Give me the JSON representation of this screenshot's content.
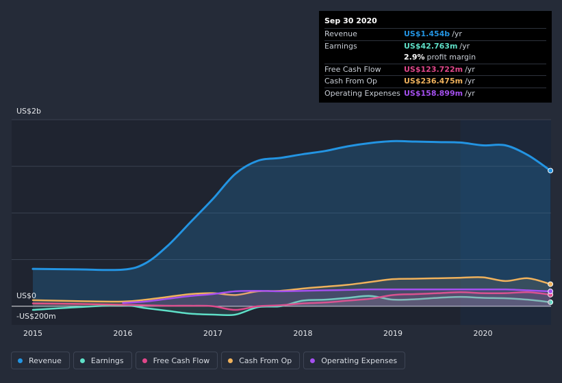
{
  "tooltip": {
    "date": "Sep 30 2020",
    "rows": [
      {
        "label": "Revenue",
        "value": "US$1.454b",
        "unit": "/yr",
        "color": "#2394e2"
      },
      {
        "label": "Earnings",
        "value": "US$42.763m",
        "unit": "/yr",
        "color": "#5fe0c8"
      },
      {
        "label": "",
        "value": "2.9%",
        "unit": "profit margin",
        "color": "#ffffff"
      },
      {
        "label": "Free Cash Flow",
        "value": "US$123.722m",
        "unit": "/yr",
        "color": "#e0478a"
      },
      {
        "label": "Cash From Op",
        "value": "US$236.475m",
        "unit": "/yr",
        "color": "#f0b25c"
      },
      {
        "label": "Operating Expenses",
        "value": "US$158.899m",
        "unit": "/yr",
        "color": "#a550f0"
      }
    ]
  },
  "axis": {
    "y_top": "US$2b",
    "y_zero": "US$0",
    "y_bottom": "-US$200m"
  },
  "legend": [
    {
      "label": "Revenue",
      "color": "#2394e2"
    },
    {
      "label": "Earnings",
      "color": "#5fe0c8"
    },
    {
      "label": "Free Cash Flow",
      "color": "#e0478a"
    },
    {
      "label": "Cash From Op",
      "color": "#f0b25c"
    },
    {
      "label": "Operating Expenses",
      "color": "#a550f0"
    }
  ],
  "chart_data": {
    "type": "area",
    "x_ticks": [
      "2015",
      "2016",
      "2017",
      "2018",
      "2019",
      "2020"
    ],
    "ylim": [
      -200,
      2000
    ],
    "y_unit": "US$m",
    "highlight_start": 2019.75,
    "series": [
      {
        "name": "Revenue",
        "color": "#2394e2",
        "points": [
          [
            2015.0,
            400
          ],
          [
            2015.5,
            395
          ],
          [
            2016.0,
            392
          ],
          [
            2016.25,
            460
          ],
          [
            2016.5,
            650
          ],
          [
            2016.75,
            900
          ],
          [
            2017.0,
            1150
          ],
          [
            2017.25,
            1420
          ],
          [
            2017.5,
            1560
          ],
          [
            2017.75,
            1590
          ],
          [
            2018.0,
            1630
          ],
          [
            2018.25,
            1665
          ],
          [
            2018.5,
            1715
          ],
          [
            2018.75,
            1750
          ],
          [
            2019.0,
            1770
          ],
          [
            2019.25,
            1765
          ],
          [
            2019.5,
            1760
          ],
          [
            2019.75,
            1755
          ],
          [
            2020.0,
            1725
          ],
          [
            2020.25,
            1725
          ],
          [
            2020.5,
            1620
          ],
          [
            2020.75,
            1454
          ]
        ]
      },
      {
        "name": "Earnings",
        "color": "#5fe0c8",
        "points": [
          [
            2015.0,
            -40
          ],
          [
            2015.5,
            -10
          ],
          [
            2016.0,
            10
          ],
          [
            2016.25,
            -20
          ],
          [
            2016.5,
            -50
          ],
          [
            2016.75,
            -80
          ],
          [
            2017.0,
            -90
          ],
          [
            2017.25,
            -90
          ],
          [
            2017.5,
            -10
          ],
          [
            2017.75,
            0
          ],
          [
            2018.0,
            60
          ],
          [
            2018.25,
            70
          ],
          [
            2018.5,
            90
          ],
          [
            2018.75,
            110
          ],
          [
            2019.0,
            70
          ],
          [
            2019.25,
            75
          ],
          [
            2019.5,
            90
          ],
          [
            2019.75,
            100
          ],
          [
            2020.0,
            90
          ],
          [
            2020.25,
            85
          ],
          [
            2020.5,
            70
          ],
          [
            2020.75,
            42.763
          ]
        ]
      },
      {
        "name": "Free Cash Flow",
        "color": "#e0478a",
        "points": [
          [
            2015.0,
            30
          ],
          [
            2015.5,
            25
          ],
          [
            2016.0,
            15
          ],
          [
            2016.25,
            10
          ],
          [
            2016.5,
            5
          ],
          [
            2016.75,
            5
          ],
          [
            2017.0,
            0
          ],
          [
            2017.25,
            -40
          ],
          [
            2017.5,
            0
          ],
          [
            2017.75,
            10
          ],
          [
            2018.0,
            30
          ],
          [
            2018.25,
            40
          ],
          [
            2018.5,
            60
          ],
          [
            2018.75,
            80
          ],
          [
            2019.0,
            120
          ],
          [
            2019.25,
            130
          ],
          [
            2019.5,
            140
          ],
          [
            2019.75,
            150
          ],
          [
            2020.0,
            140
          ],
          [
            2020.25,
            140
          ],
          [
            2020.5,
            150
          ],
          [
            2020.75,
            123.722
          ]
        ]
      },
      {
        "name": "Cash From Op",
        "color": "#f0b25c",
        "points": [
          [
            2015.0,
            65
          ],
          [
            2015.5,
            55
          ],
          [
            2016.0,
            50
          ],
          [
            2016.25,
            70
          ],
          [
            2016.5,
            100
          ],
          [
            2016.75,
            130
          ],
          [
            2017.0,
            140
          ],
          [
            2017.25,
            120
          ],
          [
            2017.5,
            160
          ],
          [
            2017.75,
            165
          ],
          [
            2018.0,
            190
          ],
          [
            2018.25,
            210
          ],
          [
            2018.5,
            230
          ],
          [
            2018.75,
            260
          ],
          [
            2019.0,
            290
          ],
          [
            2019.25,
            295
          ],
          [
            2019.5,
            300
          ],
          [
            2019.75,
            305
          ],
          [
            2020.0,
            310
          ],
          [
            2020.25,
            270
          ],
          [
            2020.5,
            300
          ],
          [
            2020.75,
            236.475
          ]
        ]
      },
      {
        "name": "Operating Expenses",
        "color": "#a550f0",
        "points": [
          [
            2016.0,
            35
          ],
          [
            2016.25,
            50
          ],
          [
            2016.5,
            80
          ],
          [
            2016.75,
            110
          ],
          [
            2017.0,
            130
          ],
          [
            2017.25,
            160
          ],
          [
            2017.5,
            165
          ],
          [
            2017.75,
            160
          ],
          [
            2018.0,
            165
          ],
          [
            2018.25,
            170
          ],
          [
            2018.5,
            175
          ],
          [
            2018.75,
            180
          ],
          [
            2019.0,
            180
          ],
          [
            2019.25,
            180
          ],
          [
            2019.5,
            180
          ],
          [
            2019.75,
            180
          ],
          [
            2020.0,
            180
          ],
          [
            2020.25,
            180
          ],
          [
            2020.5,
            170
          ],
          [
            2020.75,
            158.899
          ]
        ]
      }
    ]
  }
}
